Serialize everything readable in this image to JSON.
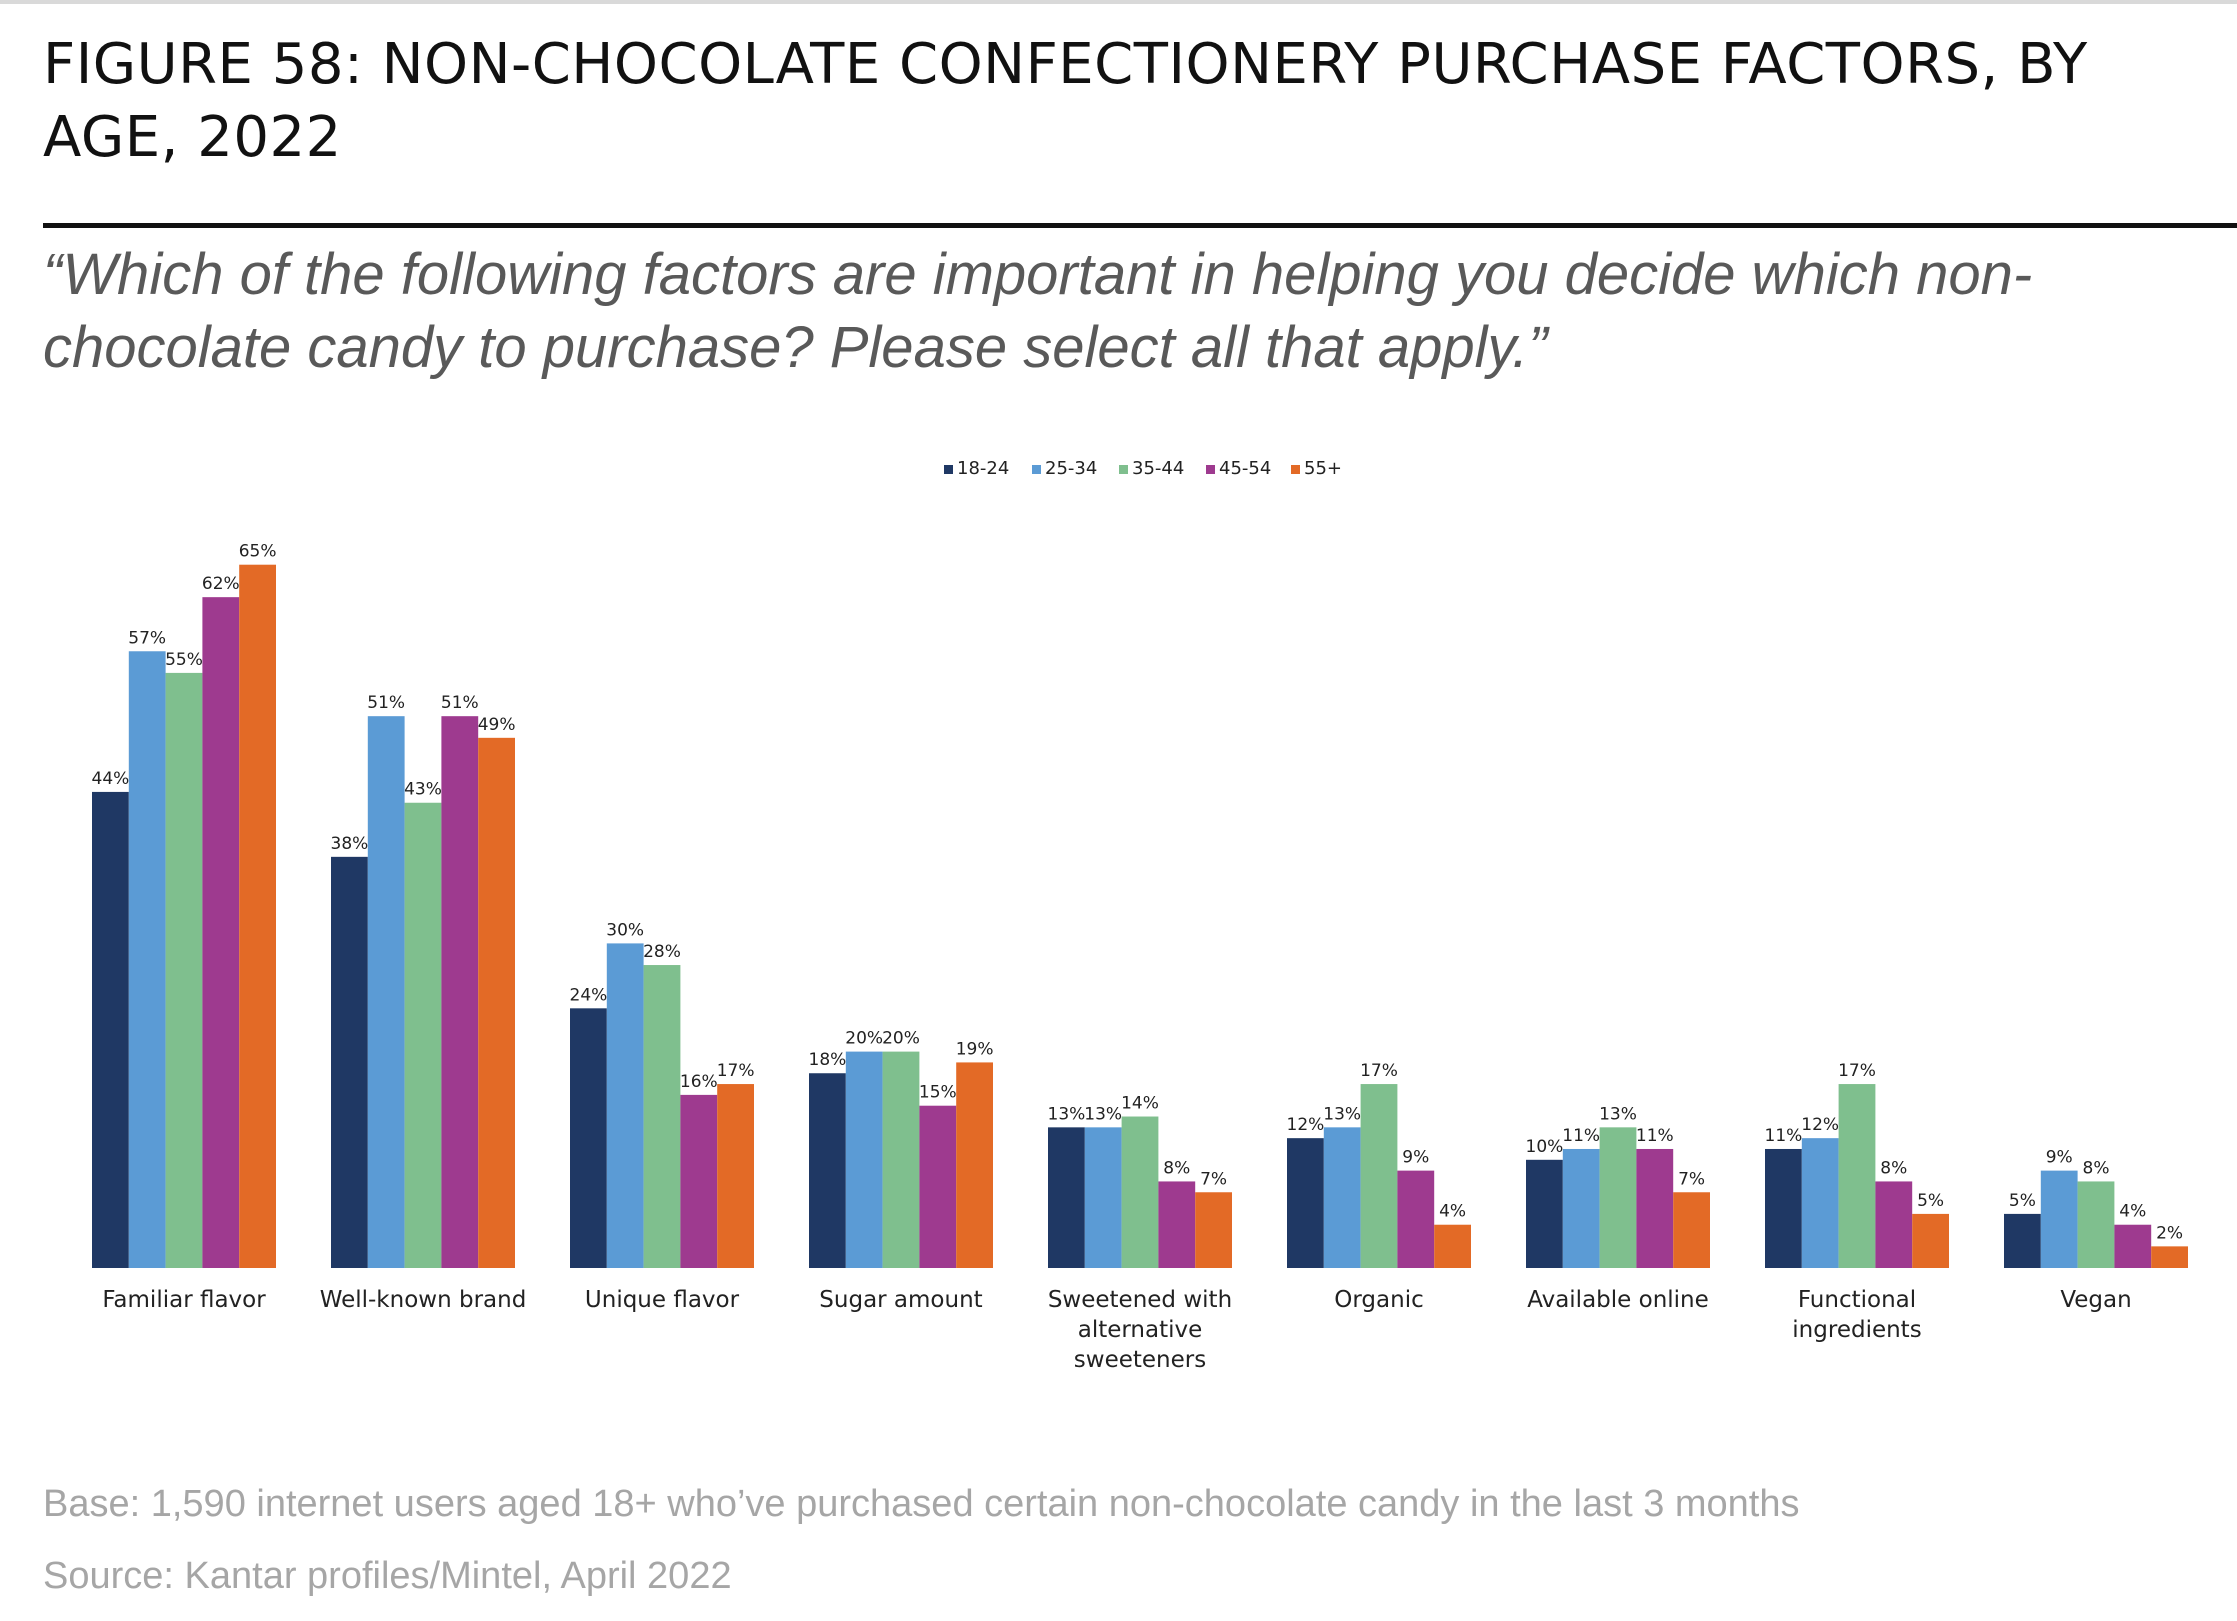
{
  "figure": {
    "title": "FIGURE 58: NON-CHOCOLATE CONFECTIONERY PURCHASE FACTORS, BY AGE, 2022",
    "question": "“Which of the following factors are important in helping you decide which non-chocolate candy to purchase? Please select all that apply.”",
    "base": "Base: 1,590 internet users aged 18+ who’ve purchased certain non-chocolate candy in the last 3 months",
    "source": "Source: Kantar profiles/Mintel, April 2022"
  },
  "chart_data": {
    "type": "bar",
    "title": "",
    "xlabel": "",
    "ylabel": "",
    "ylim": [
      0,
      65
    ],
    "grid": false,
    "legend_position": "top-center",
    "value_suffix": "%",
    "categories": [
      [
        "Familiar flavor"
      ],
      [
        "Well-known brand"
      ],
      [
        "Unique flavor"
      ],
      [
        "Sugar amount"
      ],
      [
        "Sweetened with",
        "alternative",
        "sweeteners"
      ],
      [
        "Organic"
      ],
      [
        "Available online"
      ],
      [
        "Functional",
        "ingredients"
      ],
      [
        "Vegan"
      ]
    ],
    "series": [
      {
        "name": "18-24",
        "color": "#1f3864",
        "values": [
          44,
          38,
          24,
          18,
          13,
          12,
          10,
          11,
          5
        ]
      },
      {
        "name": "25-34",
        "color": "#5b9bd5",
        "values": [
          57,
          51,
          30,
          20,
          13,
          13,
          11,
          12,
          9
        ]
      },
      {
        "name": "35-44",
        "color": "#7fbf8e",
        "values": [
          55,
          43,
          28,
          20,
          14,
          17,
          13,
          17,
          8
        ]
      },
      {
        "name": "45-54",
        "color": "#9e3a8f",
        "values": [
          62,
          51,
          16,
          15,
          8,
          9,
          11,
          8,
          4
        ]
      },
      {
        "name": "55+",
        "color": "#e36a26",
        "values": [
          65,
          49,
          17,
          19,
          7,
          4,
          7,
          5,
          2
        ]
      }
    ]
  }
}
